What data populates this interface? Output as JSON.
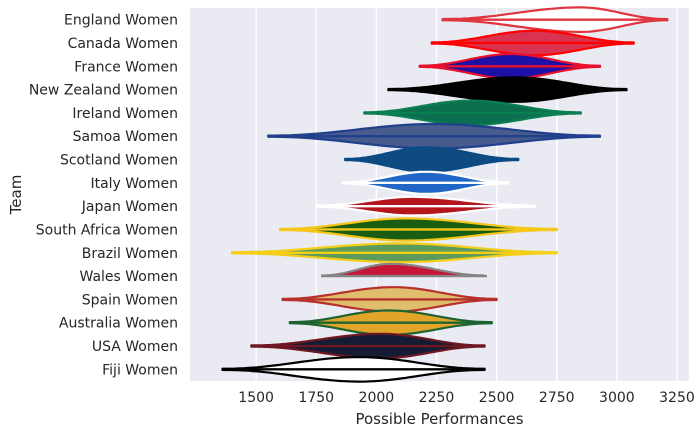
{
  "chart_data": {
    "type": "violin",
    "xlabel": "Possible Performances",
    "ylabel": "Team",
    "xlim": [
      1225,
      3300
    ],
    "x_ticks": [
      1500,
      1750,
      2000,
      2250,
      2500,
      2750,
      3000,
      3250
    ],
    "grid": true,
    "background": "#eaeaf2",
    "grid_color": "#ffffff",
    "series": [
      {
        "name": "England Women",
        "fill": "#ffffff",
        "edge": "#e0353e",
        "min": 2275,
        "max": 3210,
        "median": 2840,
        "peak": 2850,
        "thickness": 1.0,
        "shape": "sym"
      },
      {
        "name": "Canada Women",
        "fill": "#d9344f",
        "edge": "#ff0000",
        "min": 2230,
        "max": 3070,
        "median": 2660,
        "peak": 2660,
        "thickness": 1.0,
        "shape": "sym"
      },
      {
        "name": "France Women",
        "fill": "#1d10a6",
        "edge": "#e8102a",
        "min": 2180,
        "max": 2930,
        "median": 2560,
        "peak": 2560,
        "thickness": 1.0,
        "shape": "sym"
      },
      {
        "name": "New Zealand Women",
        "fill": "#000000",
        "edge": "#000000",
        "min": 2050,
        "max": 3040,
        "median": 2560,
        "peak": 2580,
        "thickness": 1.0,
        "shape": "sym"
      },
      {
        "name": "Ireland Women",
        "fill": "#0b6e4f",
        "edge": "#0a8050",
        "min": 1950,
        "max": 2850,
        "median": 2390,
        "peak": 2390,
        "thickness": 1.0,
        "shape": "sym"
      },
      {
        "name": "Samoa Women",
        "fill": "#475c8c",
        "edge": "#203f8c",
        "min": 1550,
        "max": 2930,
        "median": 2250,
        "peak": 2240,
        "thickness": 1.0,
        "shape": "sym"
      },
      {
        "name": "Scotland Women",
        "fill": "#0f4a80",
        "edge": "#0a4a85",
        "min": 1870,
        "max": 2590,
        "median": 2210,
        "peak": 2210,
        "thickness": 1.0,
        "shape": "sym"
      },
      {
        "name": "Italy Women",
        "fill": "#1f66c7",
        "edge": "#ffffff",
        "min": 1860,
        "max": 2550,
        "median": 2210,
        "peak": 2210,
        "thickness": 0.9,
        "shape": "sym"
      },
      {
        "name": "Japan Women",
        "fill": "#b5151c",
        "edge": "#ffffff",
        "min": 1750,
        "max": 2660,
        "median": 2150,
        "peak": 2150,
        "thickness": 0.75,
        "shape": "sym"
      },
      {
        "name": "South Africa Women",
        "fill": "#1a5c12",
        "edge": "#f5c718",
        "min": 1600,
        "max": 2750,
        "median": 2120,
        "peak": 2120,
        "thickness": 0.9,
        "shape": "sym"
      },
      {
        "name": "Brazil Women",
        "fill": "#5d9b5c",
        "edge": "#f5cf17",
        "min": 1400,
        "max": 2750,
        "median": 2100,
        "peak": 2100,
        "thickness": 0.75,
        "shape": "sym"
      },
      {
        "name": "Wales Women",
        "fill": "#c5163a",
        "edge": "#858585",
        "min": 1770,
        "max": 2460,
        "median": 2060,
        "peak": 2060,
        "thickness": 1.0,
        "shape": "sym"
      },
      {
        "name": "Spain Women",
        "fill": "#dfbf6e",
        "edge": "#b8302c",
        "min": 1610,
        "max": 2500,
        "median": 2070,
        "peak": 2070,
        "thickness": 1.0,
        "shape": "sym"
      },
      {
        "name": "Australia Women",
        "fill": "#e3a529",
        "edge": "#1d6432",
        "min": 1640,
        "max": 2480,
        "median": 2050,
        "peak": 2050,
        "thickness": 1.0,
        "shape": "sym"
      },
      {
        "name": "USA Women",
        "fill": "#151c33",
        "edge": "#6e1822",
        "min": 1480,
        "max": 2450,
        "median": 2020,
        "peak": 2020,
        "thickness": 1.0,
        "shape": "sym"
      },
      {
        "name": "Fiji Women",
        "fill": "#ffffff",
        "edge": "#000000",
        "min": 1360,
        "max": 2450,
        "median": 1930,
        "peak": 1930,
        "thickness": 1.0,
        "shape": "sym"
      }
    ]
  }
}
